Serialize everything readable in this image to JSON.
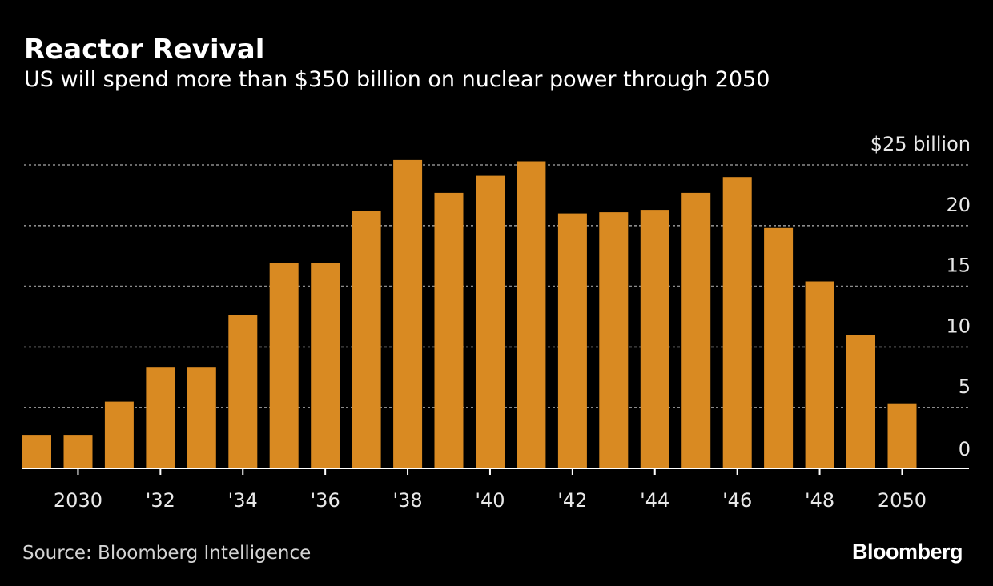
{
  "header": {
    "title": "Reactor Revival",
    "subtitle": "US will spend more than $350 billion on nuclear power through 2050"
  },
  "footer": {
    "source": "Source: Bloomberg Intelligence",
    "logo": "Bloomberg"
  },
  "colors": {
    "background": "#000000",
    "bar": "#D98A22",
    "gridline": "#8c8c8c",
    "axis": "#ffffff"
  },
  "chart_data": {
    "type": "bar",
    "title": "Reactor Revival",
    "subtitle": "US will spend more than $350 billion on nuclear power through 2050",
    "xlabel": "",
    "ylabel": "$ billion",
    "ylim": [
      0,
      25
    ],
    "grid": true,
    "y_axis_position": "right",
    "y_ticks": [
      0,
      5,
      10,
      15,
      20,
      25
    ],
    "y_tick_labels": [
      "0",
      "5",
      "10",
      "15",
      "20",
      "$25 billion"
    ],
    "categories": [
      "2029",
      "2030",
      "2031",
      "2032",
      "2033",
      "2034",
      "2035",
      "2036",
      "2037",
      "2038",
      "2039",
      "2040",
      "2041",
      "2042",
      "2043",
      "2044",
      "2045",
      "2046",
      "2047",
      "2048",
      "2049",
      "2050"
    ],
    "x_tick_labels": [
      "",
      "2030",
      "",
      "'32",
      "",
      "'34",
      "",
      "'36",
      "",
      "'38",
      "",
      "'40",
      "",
      "'42",
      "",
      "'44",
      "",
      "'46",
      "",
      "'48",
      "",
      "2050"
    ],
    "values": [
      2.7,
      2.7,
      5.5,
      8.3,
      8.3,
      12.6,
      16.9,
      16.9,
      21.2,
      25.4,
      22.7,
      24.1,
      25.3,
      21.0,
      21.1,
      21.3,
      22.7,
      24.0,
      19.8,
      15.4,
      11.0,
      5.3
    ]
  }
}
